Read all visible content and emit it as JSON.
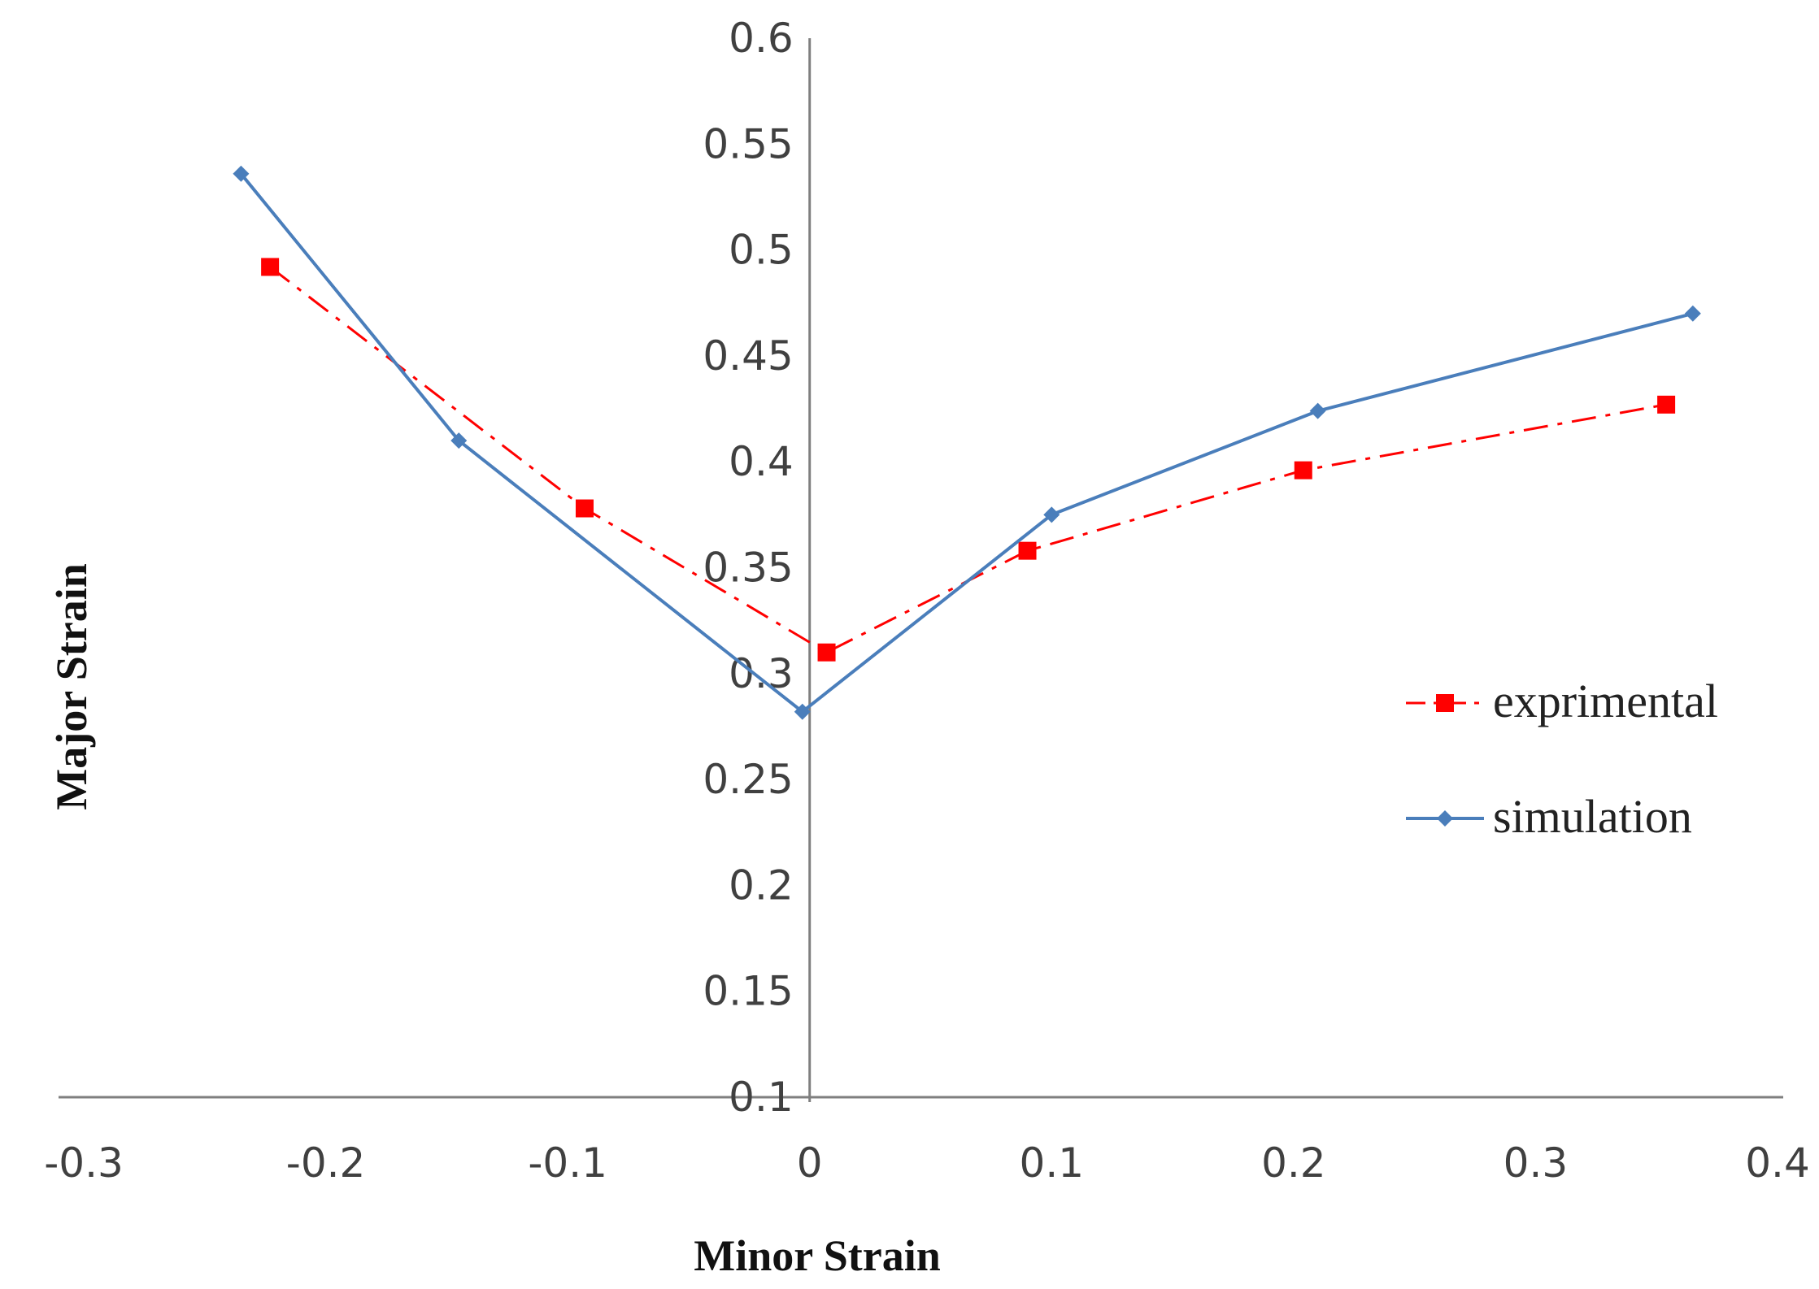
{
  "chart_data": {
    "type": "line",
    "title": "",
    "xlabel": "Minor Strain",
    "ylabel": "Major Strain",
    "xlim": [
      -0.3,
      0.4
    ],
    "ylim": [
      0.1,
      0.6
    ],
    "x_ticks": [
      -0.3,
      -0.2,
      -0.1,
      0,
      0.1,
      0.2,
      0.3,
      0.4
    ],
    "x_tick_labels": [
      "-0.3",
      "-0.2",
      "-0.1",
      "0",
      "0.1",
      "0.2",
      "0.3",
      "0.4"
    ],
    "y_ticks": [
      0.1,
      0.15,
      0.2,
      0.25,
      0.3,
      0.35,
      0.4,
      0.45,
      0.5,
      0.55,
      0.6
    ],
    "y_tick_labels": [
      "0.1",
      "0.15",
      "0.2",
      "0.25",
      "0.3",
      "0.35",
      "0.4",
      "0.45",
      "0.5",
      "0.55",
      "0.6"
    ],
    "grid": false,
    "legend_position": "right",
    "series": [
      {
        "name": "exprimental",
        "color": "#ff0000",
        "line_style": "dash-dot",
        "marker": "square",
        "points": [
          {
            "x": -0.223,
            "y": 0.492
          },
          {
            "x": -0.093,
            "y": 0.378
          },
          {
            "x": 0.007,
            "y": 0.31
          },
          {
            "x": 0.09,
            "y": 0.358
          },
          {
            "x": 0.204,
            "y": 0.396
          },
          {
            "x": 0.354,
            "y": 0.427
          }
        ]
      },
      {
        "name": "simulation",
        "color": "#4a7ebb",
        "line_style": "solid",
        "marker": "diamond",
        "points": [
          {
            "x": -0.235,
            "y": 0.536
          },
          {
            "x": -0.145,
            "y": 0.41
          },
          {
            "x": -0.003,
            "y": 0.282
          },
          {
            "x": 0.1,
            "y": 0.375
          },
          {
            "x": 0.21,
            "y": 0.424
          },
          {
            "x": 0.365,
            "y": 0.47
          }
        ]
      }
    ]
  }
}
